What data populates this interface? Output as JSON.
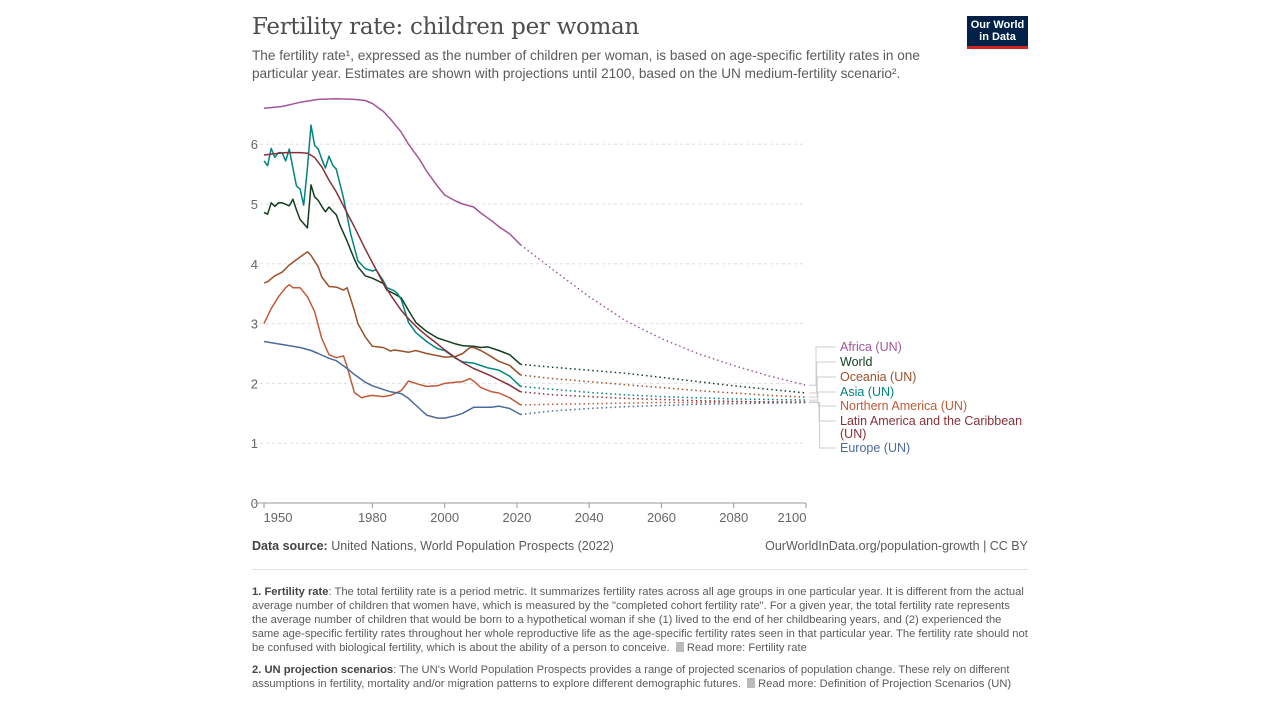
{
  "header": {
    "title": "Fertility rate: children per woman",
    "subtitle_part1": "The fertility rate¹, expressed as the number of children per woman, is based on age-specific fertility rates in one particular year. Estimates are shown with projections until 2100, based on the UN medium-fertility scenario².",
    "logo": "Our World in Data"
  },
  "footer": {
    "source_label": "Data source:",
    "source_text": "United Nations, World Population Prospects (2022)",
    "url": "OurWorldInData.org/population-growth | CC BY"
  },
  "notes": [
    {
      "title": "1. Fertility rate",
      "text": ": The total fertility rate is a period metric. It summarizes fertility rates across all age groups in one particular year. It is different from the actual average number of children that women have, which is measured by the \"completed cohort fertility rate\". For a given year, the total fertility rate represents the average number of children that would be born to a hypothetical woman if she (1) lived to the end of her childbearing years, and (2) experienced the same age-specific fertility rates throughout her whole reproductive life as the age-specific fertility rates seen in that particular year. The fertility rate should not be confused with biological fertility, which is about the ability of a person to conceive.",
      "link": "Read more: Fertility rate"
    },
    {
      "title": "2. UN projection scenarios",
      "text": ": The UN's World Population Prospects provides a range of projected scenarios of population change. These rely on different assumptions in fertility, mortality and/or migration patterns to explore different demographic futures.",
      "link": "Read more: Definition of Projection Scenarios (UN)"
    }
  ],
  "chart_data": {
    "type": "line",
    "title": "Fertility rate: children per woman",
    "xlabel": "",
    "ylabel": "",
    "xlim": [
      1950,
      2100
    ],
    "ylim": [
      0,
      6.8
    ],
    "x_ticks": [
      1950,
      1980,
      2000,
      2020,
      2040,
      2060,
      2080,
      2100
    ],
    "y_ticks": [
      0,
      1,
      2,
      3,
      4,
      5,
      6
    ],
    "grid": "horizontal dashed",
    "projection_start": 2021,
    "series": [
      {
        "name": "Africa (UN)",
        "color": "#a2559c",
        "x": [
          1950,
          1955,
          1960,
          1965,
          1970,
          1975,
          1978,
          1980,
          1983,
          1985,
          1988,
          1990,
          1993,
          1995,
          1998,
          2000,
          2003,
          2005,
          2008,
          2010,
          2013,
          2015,
          2018,
          2021
        ],
        "y": [
          6.6,
          6.63,
          6.7,
          6.75,
          6.76,
          6.75,
          6.73,
          6.68,
          6.55,
          6.42,
          6.2,
          6.0,
          5.75,
          5.55,
          5.3,
          5.15,
          5.05,
          5.0,
          4.95,
          4.85,
          4.72,
          4.62,
          4.5,
          4.32
        ],
        "proj_x": [
          2021,
          2030,
          2040,
          2050,
          2060,
          2070,
          2080,
          2090,
          2100
        ],
        "proj_y": [
          4.32,
          3.9,
          3.45,
          3.05,
          2.75,
          2.5,
          2.3,
          2.12,
          1.97
        ]
      },
      {
        "name": "World",
        "color": "#133d1f",
        "x": [
          1950,
          1951,
          1952,
          1953,
          1954,
          1955,
          1957,
          1958,
          1959,
          1960,
          1962,
          1963,
          1964,
          1965,
          1966,
          1967,
          1968,
          1969,
          1970,
          1971,
          1973,
          1975,
          1976,
          1978,
          1980,
          1982,
          1983,
          1984,
          1986,
          1988,
          1990,
          1992,
          1995,
          1998,
          2000,
          2003,
          2005,
          2008,
          2010,
          2012,
          2015,
          2018,
          2021
        ],
        "y": [
          4.86,
          4.83,
          5.02,
          4.96,
          5.02,
          5.02,
          4.97,
          5.08,
          4.9,
          4.74,
          4.6,
          5.32,
          5.12,
          5.06,
          4.96,
          4.87,
          4.95,
          4.88,
          4.82,
          4.65,
          4.38,
          4.08,
          3.95,
          3.8,
          3.76,
          3.7,
          3.67,
          3.56,
          3.5,
          3.43,
          3.22,
          3.02,
          2.87,
          2.76,
          2.72,
          2.66,
          2.63,
          2.62,
          2.6,
          2.61,
          2.55,
          2.48,
          2.32
        ],
        "proj_x": [
          2021,
          2030,
          2040,
          2050,
          2060,
          2070,
          2080,
          2090,
          2100
        ],
        "proj_y": [
          2.32,
          2.27,
          2.22,
          2.17,
          2.1,
          2.03,
          1.96,
          1.9,
          1.84
        ]
      },
      {
        "name": "Oceania (UN)",
        "color": "#9a5129",
        "x": [
          1950,
          1951,
          1953,
          1955,
          1957,
          1959,
          1962,
          1963,
          1965,
          1966,
          1968,
          1970,
          1972,
          1973,
          1975,
          1976,
          1978,
          1980,
          1983,
          1985,
          1986,
          1990,
          1992,
          1995,
          2000,
          2003,
          2005,
          2007,
          2008,
          2010,
          2012,
          2015,
          2018,
          2021
        ],
        "y": [
          3.68,
          3.7,
          3.8,
          3.86,
          3.98,
          4.07,
          4.2,
          4.14,
          3.95,
          3.78,
          3.62,
          3.61,
          3.56,
          3.6,
          3.22,
          3.0,
          2.78,
          2.62,
          2.6,
          2.54,
          2.56,
          2.52,
          2.55,
          2.5,
          2.44,
          2.45,
          2.5,
          2.6,
          2.6,
          2.55,
          2.48,
          2.37,
          2.3,
          2.14
        ],
        "proj_x": [
          2021,
          2030,
          2040,
          2050,
          2060,
          2070,
          2080,
          2090,
          2100
        ],
        "proj_y": [
          2.14,
          2.08,
          2.03,
          1.98,
          1.93,
          1.88,
          1.84,
          1.8,
          1.77
        ]
      },
      {
        "name": "Asia (UN)",
        "color": "#00847e",
        "x": [
          1950,
          1951,
          1952,
          1953,
          1954,
          1955,
          1956,
          1957,
          1958,
          1959,
          1960,
          1961,
          1962,
          1963,
          1964,
          1965,
          1966,
          1967,
          1968,
          1969,
          1970,
          1972,
          1974,
          1976,
          1978,
          1980,
          1981,
          1983,
          1984,
          1986,
          1987,
          1988,
          1990,
          1992,
          1995,
          1998,
          2000,
          2003,
          2005,
          2008,
          2010,
          2012,
          2015,
          2018,
          2021
        ],
        "y": [
          5.72,
          5.64,
          5.93,
          5.78,
          5.86,
          5.86,
          5.72,
          5.92,
          5.6,
          5.3,
          5.25,
          4.98,
          5.6,
          6.32,
          5.98,
          5.92,
          5.75,
          5.6,
          5.8,
          5.65,
          5.58,
          5.1,
          4.5,
          4.05,
          3.92,
          3.88,
          3.9,
          3.72,
          3.6,
          3.55,
          3.5,
          3.4,
          3.02,
          2.85,
          2.7,
          2.58,
          2.55,
          2.42,
          2.36,
          2.34,
          2.3,
          2.26,
          2.22,
          2.12,
          1.95
        ],
        "proj_x": [
          2021,
          2030,
          2040,
          2050,
          2060,
          2070,
          2080,
          2090,
          2100
        ],
        "proj_y": [
          1.95,
          1.9,
          1.85,
          1.81,
          1.78,
          1.76,
          1.74,
          1.73,
          1.72
        ]
      },
      {
        "name": "Northern America (UN)",
        "color": "#c05a38",
        "x": [
          1950,
          1952,
          1954,
          1956,
          1957,
          1958,
          1960,
          1962,
          1964,
          1966,
          1968,
          1970,
          1972,
          1973,
          1975,
          1977,
          1978,
          1980,
          1983,
          1985,
          1988,
          1990,
          1993,
          1995,
          1998,
          2000,
          2003,
          2005,
          2007,
          2008,
          2010,
          2013,
          2015,
          2018,
          2021
        ],
        "y": [
          3.0,
          3.25,
          3.45,
          3.6,
          3.65,
          3.6,
          3.6,
          3.45,
          3.2,
          2.75,
          2.48,
          2.43,
          2.46,
          2.28,
          1.85,
          1.76,
          1.78,
          1.8,
          1.78,
          1.8,
          1.88,
          2.04,
          1.98,
          1.95,
          1.96,
          2.0,
          2.02,
          2.03,
          2.08,
          2.04,
          1.93,
          1.86,
          1.84,
          1.76,
          1.64
        ],
        "proj_x": [
          2021,
          2030,
          2040,
          2050,
          2060,
          2070,
          2080,
          2090,
          2100
        ],
        "proj_y": [
          1.64,
          1.65,
          1.66,
          1.67,
          1.68,
          1.68,
          1.69,
          1.69,
          1.69
        ]
      },
      {
        "name": "Latin America and the Caribbean (UN)",
        "color": "#883039",
        "x": [
          1950,
          1953,
          1956,
          1960,
          1962,
          1964,
          1966,
          1968,
          1970,
          1973,
          1975,
          1978,
          1980,
          1983,
          1985,
          1988,
          1990,
          1993,
          1995,
          1998,
          2000,
          2003,
          2005,
          2008,
          2010,
          2013,
          2015,
          2018,
          2021
        ],
        "y": [
          5.82,
          5.84,
          5.86,
          5.86,
          5.85,
          5.78,
          5.62,
          5.4,
          5.2,
          4.85,
          4.62,
          4.25,
          4.02,
          3.68,
          3.48,
          3.22,
          3.08,
          2.9,
          2.8,
          2.66,
          2.56,
          2.43,
          2.35,
          2.25,
          2.2,
          2.12,
          2.06,
          1.97,
          1.86
        ],
        "proj_x": [
          2021,
          2030,
          2040,
          2050,
          2060,
          2070,
          2080,
          2090,
          2100
        ],
        "proj_y": [
          1.86,
          1.81,
          1.78,
          1.75,
          1.73,
          1.71,
          1.7,
          1.69,
          1.68
        ]
      },
      {
        "name": "Europe (UN)",
        "color": "#4c6a9c",
        "x": [
          1950,
          1955,
          1960,
          1963,
          1965,
          1968,
          1970,
          1973,
          1975,
          1978,
          1980,
          1983,
          1985,
          1988,
          1990,
          1993,
          1995,
          1998,
          2000,
          2003,
          2005,
          2008,
          2010,
          2013,
          2015,
          2018,
          2021
        ],
        "y": [
          2.7,
          2.65,
          2.6,
          2.55,
          2.5,
          2.42,
          2.38,
          2.25,
          2.15,
          2.02,
          1.96,
          1.9,
          1.86,
          1.83,
          1.75,
          1.58,
          1.47,
          1.42,
          1.42,
          1.46,
          1.5,
          1.6,
          1.6,
          1.6,
          1.62,
          1.58,
          1.48
        ],
        "proj_x": [
          2021,
          2030,
          2040,
          2050,
          2060,
          2070,
          2080,
          2090,
          2100
        ],
        "proj_y": [
          1.48,
          1.54,
          1.58,
          1.61,
          1.63,
          1.65,
          1.66,
          1.67,
          1.68
        ]
      }
    ]
  }
}
